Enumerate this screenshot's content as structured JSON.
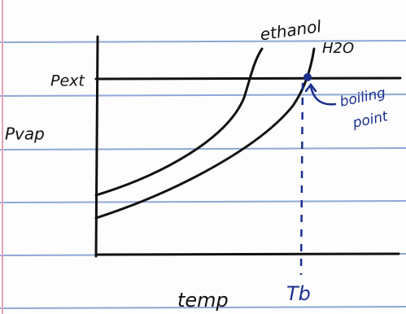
{
  "labels": {
    "y_axis": "Pvap",
    "x_axis": "temp",
    "pressure_line": "Pext",
    "curves": [
      "ethanol",
      "H2O"
    ],
    "annotation": [
      "boiling",
      "point"
    ],
    "marker": "Tb"
  }
}
